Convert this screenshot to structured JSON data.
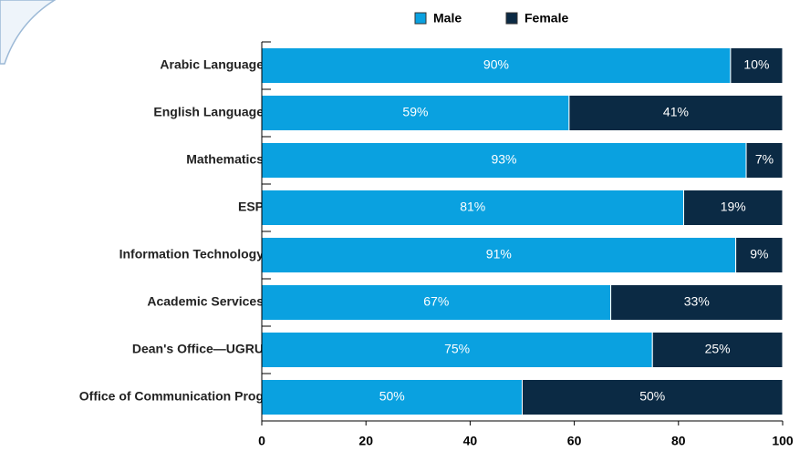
{
  "chart_data": {
    "type": "stacked_barh",
    "categories": [
      "Arabic Language",
      "English Language",
      "Mathematics",
      "ESP",
      "Information Technology",
      "Academic Services",
      "Dean's Office—UGRU",
      "Office of Communication Prog"
    ],
    "series": [
      {
        "name": "Male",
        "color": "#0aa1e0",
        "values": [
          90,
          59,
          93,
          81,
          91,
          67,
          75,
          50
        ],
        "value_labels": [
          "90%",
          "59%",
          "93%",
          "81%",
          "91%",
          "67%",
          "75%",
          "50%"
        ]
      },
      {
        "name": "Female",
        "color": "#0b2a44",
        "values": [
          10,
          41,
          7,
          19,
          9,
          33,
          25,
          50
        ],
        "value_labels": [
          "10%",
          "41%",
          "7%",
          "19%",
          "9%",
          "33%",
          "25%",
          "50%"
        ]
      }
    ],
    "xlim": [
      0,
      100
    ],
    "xticks": [
      0,
      20,
      40,
      60,
      80,
      100
    ],
    "legend": "top"
  }
}
